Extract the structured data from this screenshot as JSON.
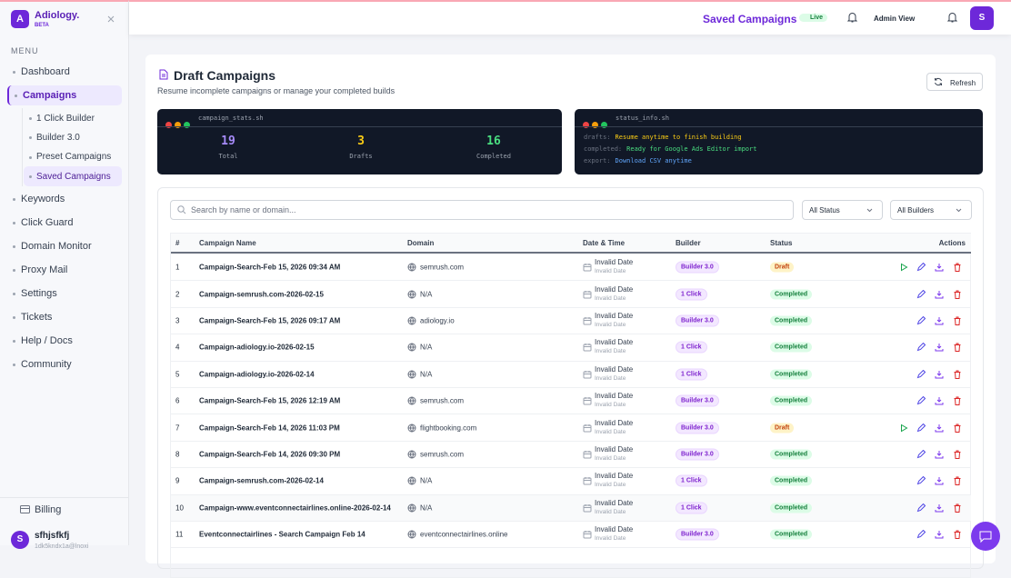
{
  "sidebar": {
    "logo": "A",
    "brand": "Adiology.",
    "badge": "BETA",
    "menu_label": "MENU",
    "nav": [
      "Dashboard",
      "Campaigns",
      "Keywords",
      "Click Guard",
      "Domain Monitor",
      "Proxy Mail",
      "Settings",
      "Tickets",
      "Help / Docs",
      "Community"
    ],
    "campaigns_submenu": [
      "1 Click Builder",
      "Builder 3.0",
      "Preset Campaigns",
      "Saved Campaigns"
    ],
    "billing": "Billing",
    "user": {
      "avatar": "S",
      "name": "sfhjsfkfj",
      "email": "1dk5kndx1a@lnoxi"
    }
  },
  "header": {
    "title": "Saved Campaigns",
    "live": "Live",
    "admin": "Admin View",
    "avatar": "S"
  },
  "page": {
    "title": "Draft Campaigns",
    "subtitle": "Resume incomplete campaigns or manage your completed builds",
    "refresh": "Refresh"
  },
  "stats_terminal": {
    "title": "campaign_stats.sh",
    "stats": [
      {
        "value": "19",
        "label": "Total",
        "color": "#a78bfa"
      },
      {
        "value": "3",
        "label": "Drafts",
        "color": "#facc15"
      },
      {
        "value": "16",
        "label": "Completed",
        "color": "#4ade80"
      }
    ]
  },
  "info_terminal": {
    "title": "status_info.sh",
    "lines": [
      {
        "key": "drafts:",
        "text": "Resume anytime to finish building",
        "color": "#facc15"
      },
      {
        "key": "completed:",
        "text": "Ready for Google Ads Editor import",
        "color": "#4ade80"
      },
      {
        "key": "export:",
        "text": "Download CSV anytime",
        "color": "#60a5fa"
      }
    ]
  },
  "filters": {
    "search": "Search by name or domain...",
    "status": "All Status",
    "builder": "All Builders"
  },
  "status_styles": {
    "Draft": {
      "color": "#c2410c",
      "bg": "#fef3c7",
      "resume": true
    },
    "Completed": {
      "color": "#15803d",
      "bg": "#dcfce7",
      "resume": false
    }
  },
  "table": {
    "columns": [
      "#",
      "Campaign Name",
      "Domain",
      "Date & Time",
      "Builder",
      "Status",
      "Actions"
    ],
    "rows": [
      [
        "1",
        "Campaign-Search-Feb 15, 2026 09:34 AM",
        "semrush.com",
        "Invalid Date",
        "Invalid Date",
        "Builder 3.0",
        "Draft"
      ],
      [
        "2",
        "Campaign-semrush.com-2026-02-15",
        "N/A",
        "Invalid Date",
        "Invalid Date",
        "1 Click",
        "Completed"
      ],
      [
        "3",
        "Campaign-Search-Feb 15, 2026 09:17 AM",
        "adiology.io",
        "Invalid Date",
        "Invalid Date",
        "Builder 3.0",
        "Completed"
      ],
      [
        "4",
        "Campaign-adiology.io-2026-02-15",
        "N/A",
        "Invalid Date",
        "Invalid Date",
        "1 Click",
        "Completed"
      ],
      [
        "5",
        "Campaign-adiology.io-2026-02-14",
        "N/A",
        "Invalid Date",
        "Invalid Date",
        "1 Click",
        "Completed"
      ],
      [
        "6",
        "Campaign-Search-Feb 15, 2026 12:19 AM",
        "semrush.com",
        "Invalid Date",
        "Invalid Date",
        "Builder 3.0",
        "Completed"
      ],
      [
        "7",
        "Campaign-Search-Feb 14, 2026 11:03 PM",
        "flightbooking.com",
        "Invalid Date",
        "Invalid Date",
        "Builder 3.0",
        "Draft"
      ],
      [
        "8",
        "Campaign-Search-Feb 14, 2026 09:30 PM",
        "semrush.com",
        "Invalid Date",
        "Invalid Date",
        "Builder 3.0",
        "Completed"
      ],
      [
        "9",
        "Campaign-semrush.com-2026-02-14",
        "N/A",
        "Invalid Date",
        "Invalid Date",
        "1 Click",
        "Completed"
      ],
      [
        "10",
        "Campaign-www.eventconnectairlines.online-2026-02-14",
        "N/A",
        "Invalid Date",
        "Invalid Date",
        "1 Click",
        "Completed"
      ],
      [
        "11",
        "Eventconnectairlines - Search Campaign Feb 14",
        "eventconnectairlines.online",
        "Invalid Date",
        "Invalid Date",
        "Builder 3.0",
        "Completed"
      ]
    ]
  }
}
